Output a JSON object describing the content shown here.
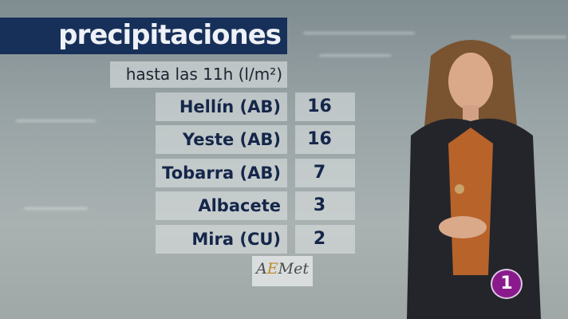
{
  "graphic": {
    "title": "precipitaciones",
    "subtitle": "hasta las 11h (l/m²)",
    "rows": [
      {
        "place": "Hellín (AB)",
        "value": "16"
      },
      {
        "place": "Yeste (AB)",
        "value": "16"
      },
      {
        "place": "Tobarra (AB)",
        "value": "7"
      },
      {
        "place": "Albacete",
        "value": "3"
      },
      {
        "place": "Mira (CU)",
        "value": "2"
      }
    ],
    "source_logo": "AEMet"
  },
  "channel_logo": "1",
  "colors": {
    "title_bar": "#17305a",
    "text": "#15264a",
    "channel": "#8a1a8c"
  }
}
